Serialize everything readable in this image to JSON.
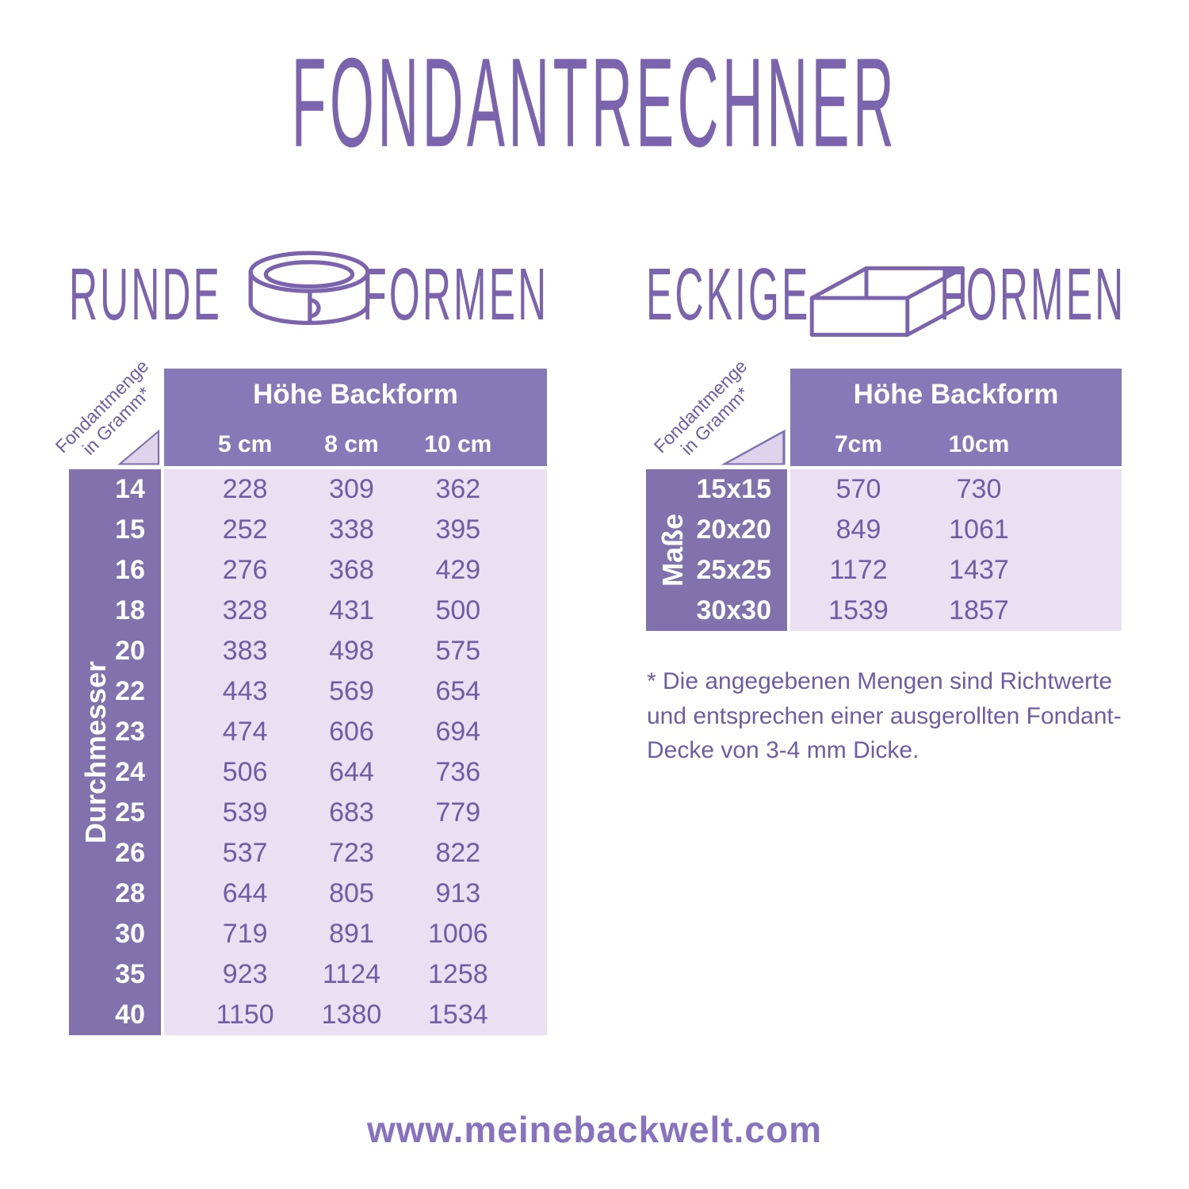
{
  "page": {
    "title": "Fondantrechner",
    "footer_url": "www.meinebackwelt.com"
  },
  "colors": {
    "accent": "#7b64ad",
    "table_header_bg": "#8779b8",
    "row_label_bg": "#8172ae",
    "table_body_bg": "#e9e1f2",
    "triangle_fill": "#ddd4ec",
    "value_text": "#6e5da5"
  },
  "sections": {
    "round": {
      "word_left": "Runde",
      "word_right": "Formen",
      "icon": "round-cake-ring-icon"
    },
    "square": {
      "word_left": "Eckige",
      "word_right": "Formen",
      "icon": "square-baking-frame-icon"
    }
  },
  "footnote": "* Die angegebenen Mengen sind Richtwerte und entsprechen einer ausgerollten Fondant-Decke von 3-4 mm Dicke.",
  "chart_data": [
    {
      "type": "table",
      "title": "Runde Formen",
      "corner_label_lines": [
        "Fondantmenge",
        "in Gramm*"
      ],
      "header": "Höhe Backform",
      "axis_label": "Durchmesser",
      "col_headers": [
        "5 cm",
        "8 cm",
        "10 cm"
      ],
      "row_labels": [
        "14",
        "15",
        "16",
        "18",
        "20",
        "22",
        "23",
        "24",
        "25",
        "26",
        "28",
        "30",
        "35",
        "40"
      ],
      "values": [
        [
          228,
          309,
          362
        ],
        [
          252,
          338,
          395
        ],
        [
          276,
          368,
          429
        ],
        [
          328,
          431,
          500
        ],
        [
          383,
          498,
          575
        ],
        [
          443,
          569,
          654
        ],
        [
          474,
          606,
          694
        ],
        [
          506,
          644,
          736
        ],
        [
          539,
          683,
          779
        ],
        [
          537,
          723,
          822
        ],
        [
          644,
          805,
          913
        ],
        [
          719,
          891,
          1006
        ],
        [
          923,
          1124,
          1258
        ],
        [
          1150,
          1380,
          1534
        ]
      ]
    },
    {
      "type": "table",
      "title": "Eckige Formen",
      "corner_label_lines": [
        "Fondantmenge",
        "in Gramm*"
      ],
      "header": "Höhe Backform",
      "axis_label": "Maße",
      "col_headers": [
        "7cm",
        "10cm"
      ],
      "row_labels": [
        "15x15",
        "20x20",
        "25x25",
        "30x30"
      ],
      "values": [
        [
          570,
          730
        ],
        [
          849,
          1061
        ],
        [
          1172,
          1437
        ],
        [
          1539,
          1857
        ]
      ]
    }
  ]
}
